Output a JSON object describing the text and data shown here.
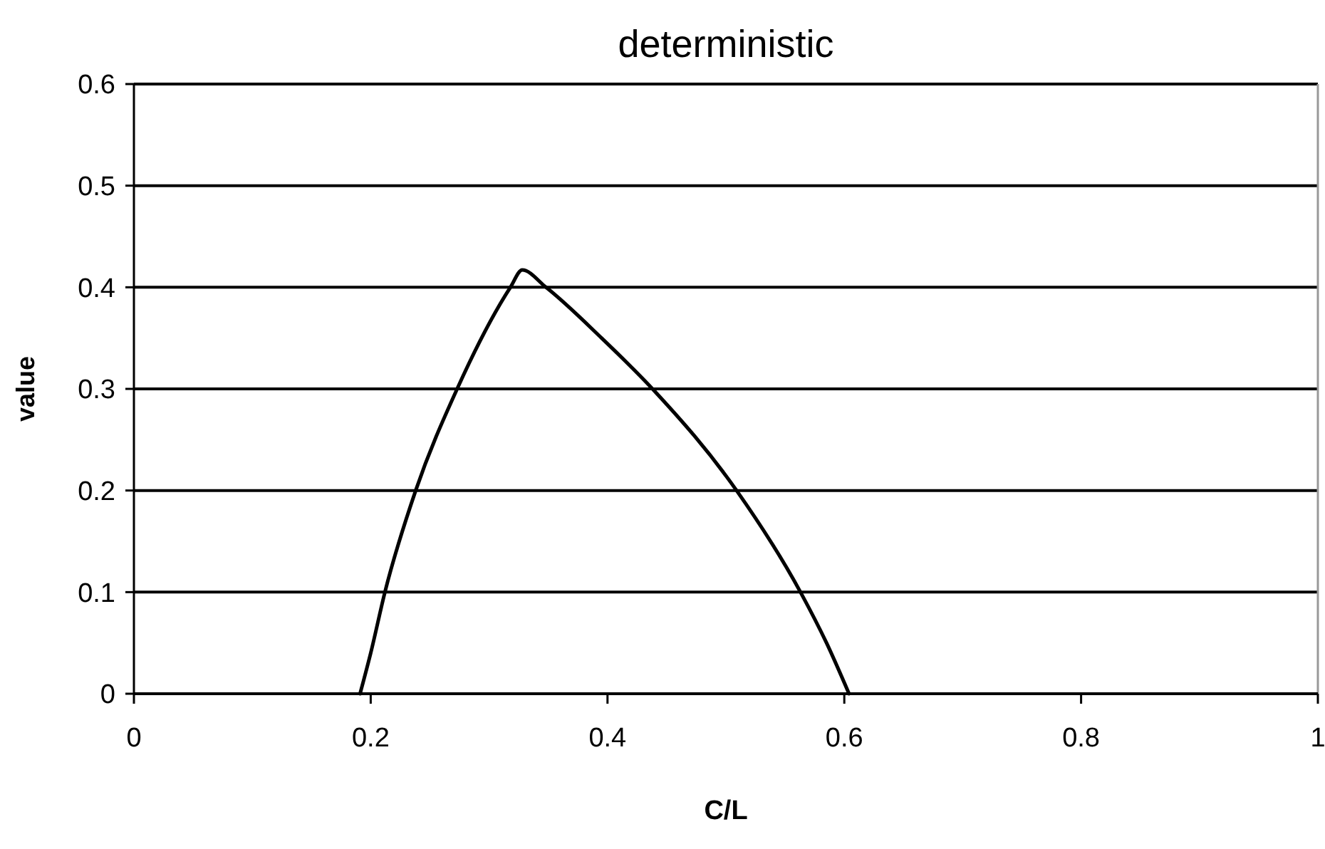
{
  "chart_data": {
    "type": "line",
    "title": "deterministic",
    "xlabel": "C/L",
    "ylabel": "value",
    "x": [
      0.191,
      0.2,
      0.212,
      0.238,
      0.273,
      0.318,
      0.328,
      0.348,
      0.395,
      0.438,
      0.509,
      0.563,
      0.585,
      0.604
    ],
    "series": [
      {
        "color": "#000000",
        "values": [
          0,
          0.04,
          0.1,
          0.2,
          0.3,
          0.4,
          0.417,
          0.4,
          0.35,
          0.3,
          0.2,
          0.1,
          0.05,
          0
        ]
      }
    ],
    "xlim": [
      0,
      1
    ],
    "ylim": [
      0,
      0.6
    ],
    "xticks": [
      0,
      0.2,
      0.4,
      0.6,
      0.8,
      1
    ],
    "yticks": [
      0,
      0.1,
      0.2,
      0.3,
      0.4,
      0.5,
      0.6
    ],
    "grid": "y",
    "marker": "none",
    "line_style": "solid"
  }
}
